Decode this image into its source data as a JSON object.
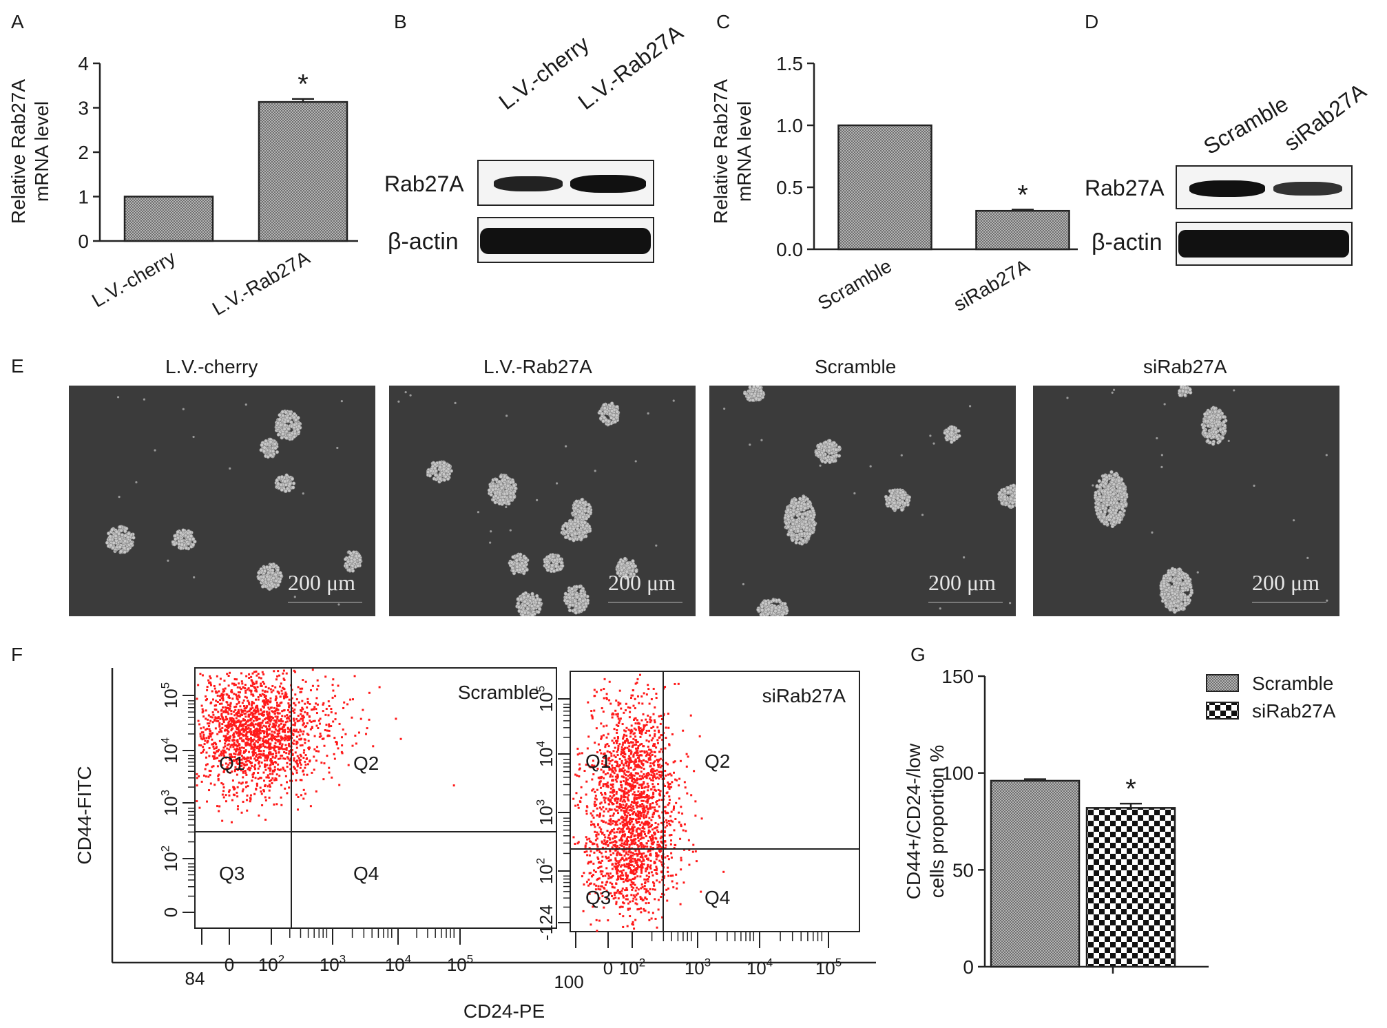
{
  "panel_labels": {
    "a": "A",
    "b": "B",
    "c": "C",
    "d": "D",
    "e": "E",
    "f": "F",
    "g": "G"
  },
  "significance_mark": "*",
  "blot_B": {
    "lanes": [
      "L.V.-cherry",
      "L.V.-Rab27A"
    ],
    "rows": [
      "Rab27A",
      "β-actin"
    ]
  },
  "blot_D": {
    "lanes": [
      "Scramble",
      "siRab27A"
    ],
    "rows": [
      "Rab27A",
      "β-actin"
    ]
  },
  "micrographs": [
    {
      "title": "L.V.-cherry",
      "scale": "200 μm"
    },
    {
      "title": "L.V.-Rab27A",
      "scale": "200 μm"
    },
    {
      "title": "Scramble",
      "scale": "200 μm"
    },
    {
      "title": "siRab27A",
      "scale": "200 μm"
    }
  ],
  "flow": {
    "ylabel": "CD44-FITC",
    "xlabel": "CD24-PE",
    "quadrants": [
      "Q1",
      "Q2",
      "Q3",
      "Q4"
    ],
    "plots": [
      {
        "name": "Scramble",
        "yticks": [
          "0",
          "10^2",
          "10^3",
          "10^4",
          "10^5"
        ],
        "xticks": [
          "84",
          "0",
          "10^2",
          "10^3",
          "10^4",
          "10^5"
        ]
      },
      {
        "name": "siRab27A",
        "yticks": [
          "-124",
          "10^2",
          "10^3",
          "10^4",
          "10^5"
        ],
        "xticks": [
          "100",
          "0",
          "10^2",
          "10^3",
          "10^4",
          "10^5"
        ]
      }
    ]
  },
  "colors": {
    "bar_fill": "#9a9a9a",
    "dots": "#ff1a1a",
    "photo_bg": "#3b3b3b"
  },
  "chart_data": [
    {
      "panel": "A",
      "type": "bar",
      "categories": [
        "L.V.-cherry",
        "L.V.-Rab27A"
      ],
      "values": [
        1.0,
        3.13
      ],
      "errors": [
        0,
        0.07
      ],
      "significant": [
        false,
        true
      ],
      "ylabel": "Relative Rab27A mRNA level",
      "ylim": [
        0,
        4
      ],
      "yticks": [
        0,
        1,
        2,
        3,
        4
      ],
      "yticklabels": [
        "0",
        "1",
        "2",
        "3",
        "4"
      ]
    },
    {
      "panel": "C",
      "type": "bar",
      "categories": [
        "Scramble",
        "siRab27A"
      ],
      "values": [
        1.0,
        0.31
      ],
      "errors": [
        0,
        0.01
      ],
      "significant": [
        false,
        true
      ],
      "ylabel": "Relative Rab27A mRNA level",
      "ylim": [
        0,
        1.5
      ],
      "yticks": [
        0,
        0.5,
        1.0,
        1.5
      ],
      "yticklabels": [
        "0.0",
        "0.5",
        "1.0",
        "1.5"
      ]
    },
    {
      "panel": "G",
      "type": "bar",
      "categories": [
        "Scramble",
        "siRab27A"
      ],
      "values": [
        96,
        82
      ],
      "errors": [
        0.8,
        2.2
      ],
      "significant": [
        false,
        true
      ],
      "ylabel": "CD44+/CD24-/low cells proportion %",
      "ylim": [
        0,
        150
      ],
      "yticks": [
        0,
        50,
        100,
        150
      ],
      "yticklabels": [
        "0",
        "50",
        "100",
        "150"
      ],
      "legend": [
        "Scramble",
        "siRab27A"
      ],
      "legend_position": "top-right"
    }
  ]
}
